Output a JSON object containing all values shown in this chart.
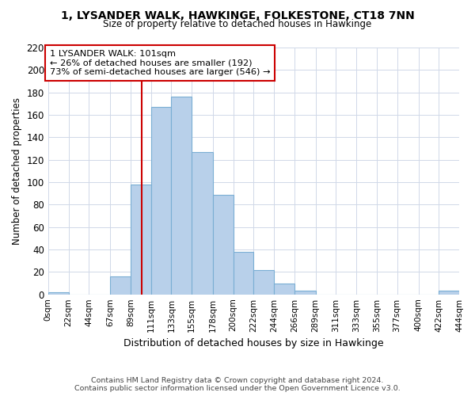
{
  "title": "1, LYSANDER WALK, HAWKINGE, FOLKESTONE, CT18 7NN",
  "subtitle": "Size of property relative to detached houses in Hawkinge",
  "xlabel": "Distribution of detached houses by size in Hawkinge",
  "ylabel": "Number of detached properties",
  "footer_line1": "Contains HM Land Registry data © Crown copyright and database right 2024.",
  "footer_line2": "Contains public sector information licensed under the Open Government Licence v3.0.",
  "bar_color": "#b8d0ea",
  "bar_edge_color": "#7aaed4",
  "vline_x": 101,
  "vline_color": "#cc0000",
  "annotation_line1": "1 LYSANDER WALK: 101sqm",
  "annotation_line2": "← 26% of detached houses are smaller (192)",
  "annotation_line3": "73% of semi-detached houses are larger (546) →",
  "annotation_box_color": "#ffffff",
  "annotation_box_edge": "#cc0000",
  "bin_edges": [
    0,
    22,
    44,
    67,
    89,
    111,
    133,
    155,
    178,
    200,
    222,
    244,
    266,
    289,
    311,
    333,
    355,
    377,
    400,
    422,
    444
  ],
  "bin_labels": [
    "0sqm",
    "22sqm",
    "44sqm",
    "67sqm",
    "89sqm",
    "111sqm",
    "133sqm",
    "155sqm",
    "178sqm",
    "200sqm",
    "222sqm",
    "244sqm",
    "266sqm",
    "289sqm",
    "311sqm",
    "333sqm",
    "355sqm",
    "377sqm",
    "400sqm",
    "422sqm",
    "444sqm"
  ],
  "bar_heights": [
    2,
    0,
    0,
    16,
    98,
    167,
    176,
    127,
    89,
    38,
    22,
    10,
    3,
    0,
    0,
    0,
    0,
    0,
    0,
    3
  ],
  "ylim": [
    0,
    220
  ],
  "yticks": [
    0,
    20,
    40,
    60,
    80,
    100,
    120,
    140,
    160,
    180,
    200,
    220
  ],
  "background_color": "#ffffff",
  "grid_color": "#d0d8e8"
}
